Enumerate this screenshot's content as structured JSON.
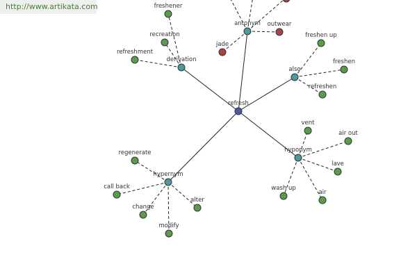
{
  "watermark": "http://www.artikata.com",
  "nodes": [
    {
      "label": "refresh"
    },
    {
      "label": "antonym"
    },
    {
      "label": "jade"
    },
    {
      "label": "outwear"
    },
    {
      "label": "derivation"
    },
    {
      "label": "freshener"
    },
    {
      "label": "recreation"
    },
    {
      "label": "refreshment"
    },
    {
      "label": "also"
    },
    {
      "label": "freshen up"
    },
    {
      "label": "freshen"
    },
    {
      "label": "refreshen"
    },
    {
      "label": "hyponym"
    },
    {
      "label": "vent"
    },
    {
      "label": "air out"
    },
    {
      "label": "lave"
    },
    {
      "label": "air"
    },
    {
      "label": "wash up"
    },
    {
      "label": "hypernym"
    },
    {
      "label": "regenerate"
    },
    {
      "label": "call back"
    },
    {
      "label": "change"
    },
    {
      "label": "modify"
    },
    {
      "label": "alter"
    }
  ]
}
